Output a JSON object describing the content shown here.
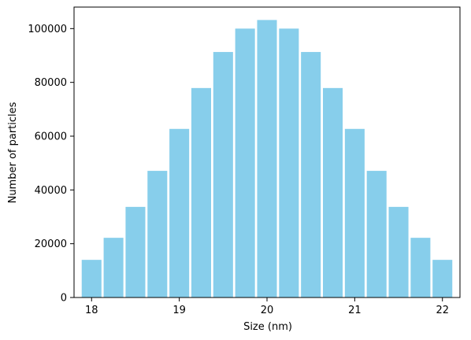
{
  "chart_data": {
    "type": "bar",
    "title": "",
    "xlabel": "Size (nm)",
    "ylabel": "Number of particles",
    "x": [
      18.0,
      18.25,
      18.5,
      18.75,
      19.0,
      19.25,
      19.5,
      19.75,
      20.0,
      20.25,
      20.5,
      20.75,
      21.0,
      21.25,
      21.5,
      21.75,
      22.0
    ],
    "values": [
      14000,
      22200,
      33700,
      47100,
      62700,
      77900,
      91300,
      100000,
      103200,
      100000,
      91300,
      77900,
      62700,
      47100,
      33700,
      22200,
      14000
    ],
    "bar_width": 0.225,
    "xlim": [
      17.8,
      22.2
    ],
    "ylim": [
      0,
      108000
    ],
    "xticks": [
      18,
      19,
      20,
      21,
      22
    ],
    "yticks": [
      0,
      20000,
      40000,
      60000,
      80000,
      100000
    ],
    "grid": false,
    "colors": {
      "bar": "#87CEEB",
      "bar_edge": "#ffffff",
      "axis": "#000000"
    }
  }
}
